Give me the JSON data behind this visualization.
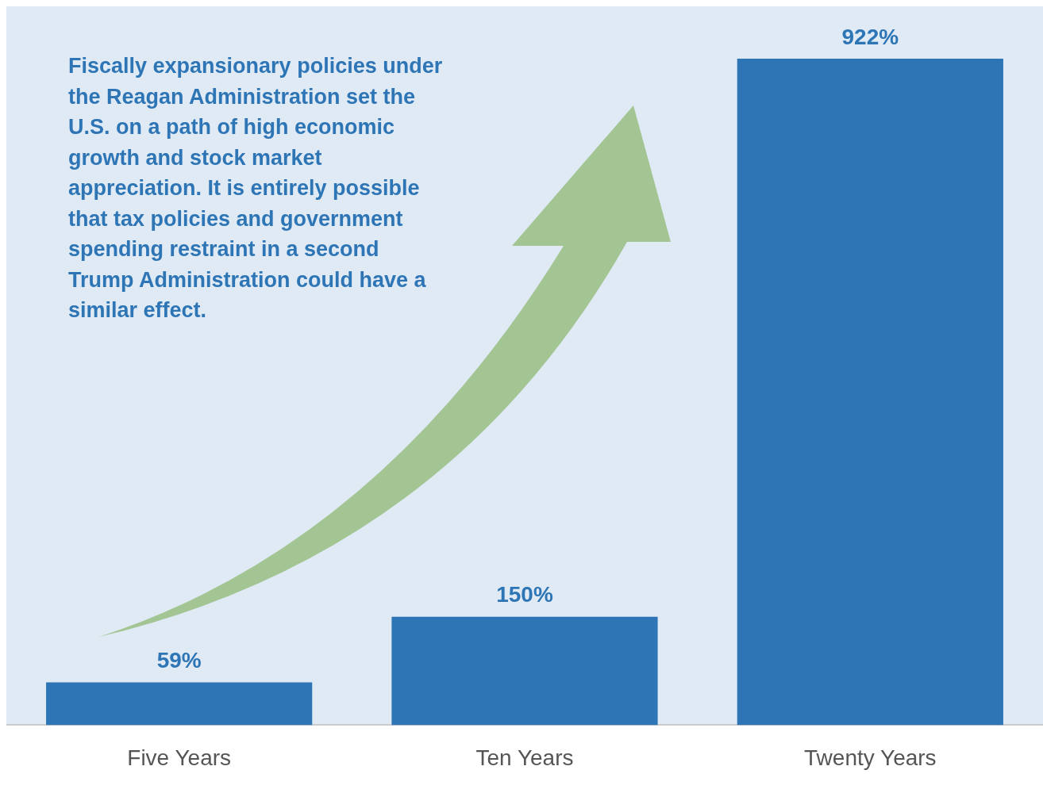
{
  "chart_data": {
    "type": "bar",
    "categories": [
      "Five Years",
      "Ten Years",
      "Twenty Years"
    ],
    "values": [
      59,
      150,
      922
    ],
    "color": "#2e75b6",
    "value_labels": [
      "59%",
      "150%",
      "922%"
    ],
    "grid": false,
    "legend": false,
    "annotations": [
      "Fiscally expansionary policies under the Reagan Administration set the U.S. on a path of high economic growth and stock market appreciation. It is entirely possible that tax policies and government spending restraint in a second Trump Administration could have a similar effect."
    ]
  }
}
